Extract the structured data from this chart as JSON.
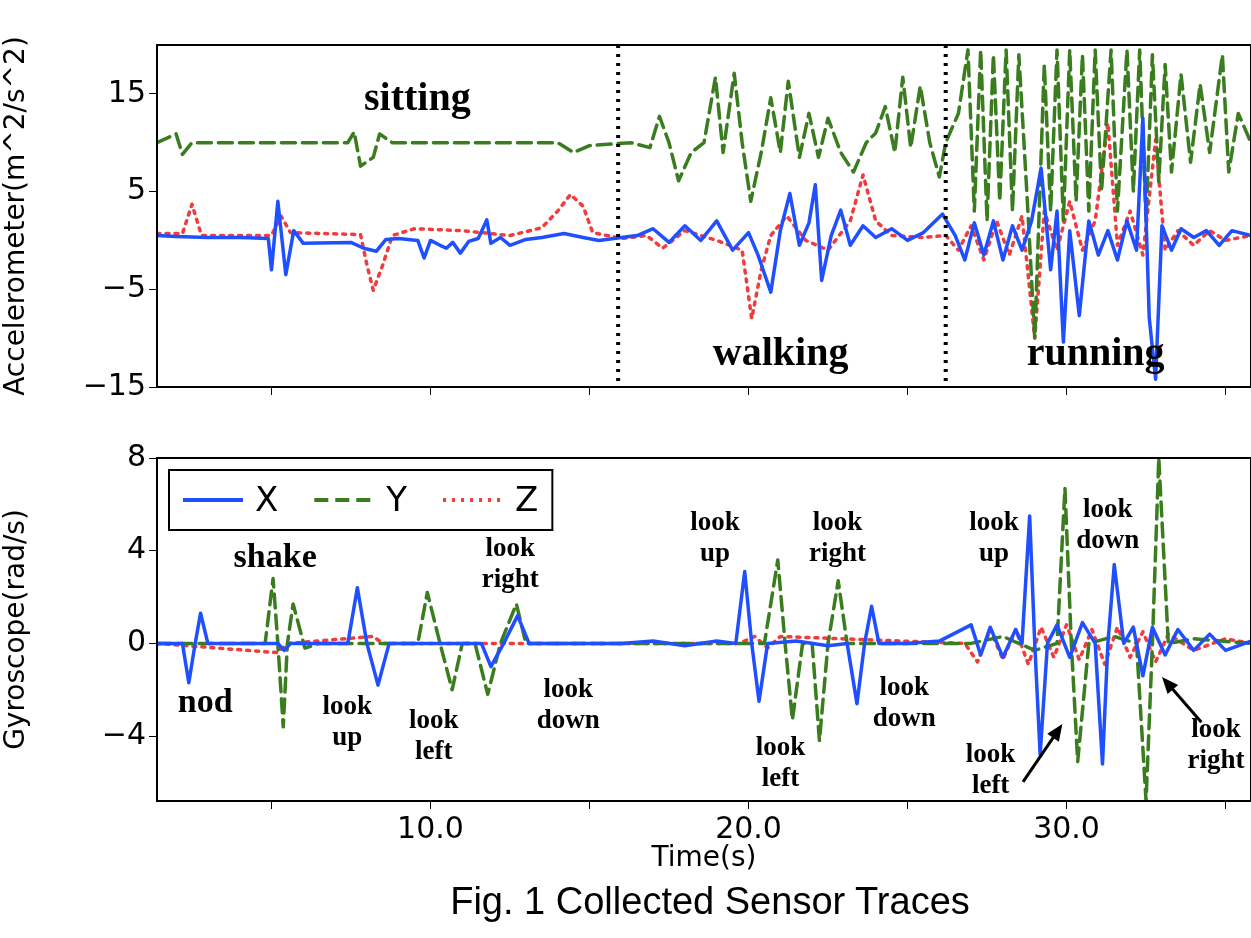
{
  "chart_data": [
    {
      "type": "line",
      "ylabel": "Accelerometer(m^2/s^2)",
      "xlim": [
        1.4,
        35.8
      ],
      "ylim": [
        -15,
        20
      ],
      "xticks": [
        {
          "value": 5,
          "label": null
        },
        {
          "value": 10,
          "label": null
        },
        {
          "value": 15,
          "label": null
        },
        {
          "value": 20,
          "label": null
        },
        {
          "value": 25,
          "label": null
        },
        {
          "value": 30,
          "label": null
        },
        {
          "value": 35,
          "label": null
        }
      ],
      "yticks": [
        {
          "value": -15,
          "label": "−15"
        },
        {
          "value": -5,
          "label": "−5"
        },
        5,
        15
      ],
      "tick_labels": "y",
      "marker": "none",
      "series": [
        {
          "color": "#1f4fff",
          "line_style": "solid",
          "x": [
            1.4,
            2.0,
            3.0,
            4.0,
            4.9,
            5.0,
            5.2,
            5.45,
            5.7,
            6.0,
            7.5,
            7.9,
            8.3,
            8.6,
            9.0,
            9.6,
            9.8,
            10.0,
            10.3,
            10.5,
            10.7,
            10.94,
            11.2,
            11.5,
            11.77,
            11.9,
            12.2,
            12.5,
            13.0,
            13.5,
            14.2,
            14.8,
            15.3,
            16.0,
            16.5,
            17.0,
            17.5,
            18.0,
            18.5,
            19.0,
            19.5,
            20.0,
            20.3,
            20.7,
            21.0,
            21.3,
            21.6,
            21.9,
            22.1,
            22.3,
            22.6,
            22.9,
            23.2,
            23.6,
            24.0,
            24.5,
            25.0,
            25.5,
            26.1,
            26.5,
            26.8,
            27.1,
            27.4,
            27.7,
            28.0,
            28.3,
            28.6,
            28.9,
            29.2,
            29.5,
            29.7,
            29.9,
            30.1,
            30.4,
            30.7,
            31.0,
            31.3,
            31.6,
            31.9,
            32.2,
            32.4,
            32.6,
            32.8,
            33.0,
            33.3,
            33.6,
            34.0,
            34.4,
            34.8,
            35.2,
            35.8
          ],
          "values": [
            0.5,
            0.4,
            0.3,
            0.3,
            0.2,
            -3,
            4,
            -3.5,
            1,
            -0.3,
            -0.2,
            -0.8,
            -1.1,
            0.1,
            0.2,
            0,
            -1.8,
            0,
            -0.5,
            -0.8,
            -0.2,
            -1.3,
            -0.1,
            0.2,
            2.1,
            -0.3,
            0.3,
            -0.5,
            0.1,
            0.3,
            0.7,
            0.3,
            0,
            0.3,
            0.5,
            1.2,
            -0.2,
            1.5,
            0,
            2,
            -1,
            0.8,
            -1.5,
            -5.3,
            1,
            4.8,
            -0.5,
            1.8,
            5.7,
            -4.1,
            0.5,
            3.1,
            -0.5,
            1.5,
            0.3,
            1.2,
            0,
            0.8,
            2.7,
            0.5,
            -2,
            1.8,
            -1.5,
            2,
            -2,
            1.5,
            -1,
            2,
            7.4,
            -3,
            3,
            -10.4,
            1,
            -7.7,
            2,
            -1.5,
            1,
            -2,
            2,
            -1,
            12.5,
            -7.9,
            -14.2,
            1.5,
            -1,
            1.2,
            0.3,
            1,
            -0.5,
            1,
            0.5
          ]
        },
        {
          "color": "#3a7d1e",
          "line_style": "dashed",
          "x": [
            1.4,
            2.0,
            2.2,
            2.5,
            7.4,
            7.6,
            7.8,
            8.2,
            8.4,
            8.8,
            14.0,
            14.5,
            15.0,
            16.3,
            16.9,
            17.2,
            17.5,
            17.8,
            18.2,
            18.6,
            18.96,
            19.2,
            19.55,
            19.8,
            20.07,
            20.4,
            20.7,
            21.0,
            21.25,
            21.6,
            21.9,
            22.2,
            22.5,
            22.9,
            23.3,
            23.7,
            24.0,
            24.3,
            24.6,
            24.85,
            25.1,
            25.4,
            25.7,
            26.0,
            26.2,
            26.6,
            26.9,
            27.1,
            27.3,
            27.5,
            27.7,
            27.9,
            28.1,
            28.3,
            28.5,
            28.75,
            29.0,
            29.3,
            29.5,
            29.7,
            29.9,
            30.1,
            30.3,
            30.5,
            30.7,
            30.9,
            31.1,
            31.4,
            31.6,
            31.9,
            32.1,
            32.3,
            32.5,
            32.7,
            32.9,
            33.1,
            33.3,
            33.6,
            33.9,
            34.2,
            34.5,
            34.9,
            35.1,
            35.4,
            35.8
          ],
          "values": [
            10,
            10.9,
            8.8,
            10,
            10,
            11.1,
            7.6,
            8.5,
            10.9,
            10,
            10,
            9.0,
            9.7,
            10,
            9.5,
            12.7,
            10,
            6.1,
            9,
            10,
            16.7,
            9,
            17.1,
            10,
            4,
            9,
            14.6,
            9,
            16.3,
            8.5,
            13,
            8.5,
            12.5,
            9,
            7,
            10,
            11,
            13.7,
            9,
            16.7,
            9.5,
            15.8,
            10,
            6.5,
            10,
            13,
            19.5,
            3,
            19.5,
            2,
            19,
            4,
            19.5,
            3,
            19,
            5,
            -10,
            18,
            3,
            19.5,
            2,
            19.5,
            4,
            19,
            3,
            19.5,
            5,
            19.5,
            3,
            19.5,
            5,
            19.5,
            2,
            19,
            6,
            18,
            7,
            17,
            8,
            16,
            9,
            19,
            7,
            13,
            10
          ]
        },
        {
          "color": "#f03c3c",
          "line_style": "dotted",
          "x": [
            1.4,
            2.2,
            2.5,
            2.8,
            5.0,
            5.3,
            5.6,
            7.8,
            8.0,
            8.2,
            8.5,
            8.8,
            9.5,
            11.0,
            12.5,
            13.5,
            14.0,
            14.4,
            14.8,
            15.1,
            16.0,
            16.8,
            17.3,
            18.0,
            19.0,
            19.8,
            20.1,
            20.4,
            20.7,
            21.2,
            21.8,
            22.5,
            23.2,
            23.6,
            24.0,
            24.5,
            25.5,
            26.2,
            26.6,
            27.0,
            27.4,
            27.8,
            28.2,
            28.6,
            29.0,
            29.3,
            29.7,
            30.1,
            30.5,
            30.9,
            31.3,
            31.6,
            32.0,
            32.4,
            32.8,
            33.1,
            33.5,
            34.0,
            34.5,
            35.0,
            35.8
          ],
          "values": [
            0.7,
            0.7,
            3.7,
            0.5,
            0.5,
            2.5,
            0.8,
            0.6,
            -2.5,
            -5.1,
            -2.5,
            0.5,
            1.2,
            1.0,
            0.5,
            1.3,
            3,
            4.7,
            3.5,
            0.8,
            0.2,
            0.5,
            -0.8,
            1,
            0,
            -1,
            -8,
            -3,
            0.5,
            2.5,
            0,
            -1,
            2,
            6.7,
            2,
            0.5,
            0.3,
            0.5,
            -1,
            1.5,
            -2,
            2,
            -1.5,
            2.5,
            -10,
            3,
            -1,
            4,
            -1,
            2,
            12,
            -0.5,
            3,
            -1.5,
            10.3,
            -1,
            1,
            -0.5,
            1,
            0,
            0.5
          ]
        }
      ],
      "ref_lines": [
        {
          "axis": "x",
          "value": 15.9,
          "color": "#000000",
          "line_style": "dotted"
        },
        {
          "axis": "x",
          "value": 26.2,
          "color": "#000000",
          "line_style": "dotted"
        }
      ],
      "annotations": [
        "sitting",
        "walking",
        "running"
      ]
    },
    {
      "type": "line",
      "xlabel": "Time(s)",
      "ylabel": "Gyroscope(rad/s)",
      "xlim": [
        1.4,
        35.8
      ],
      "ylim": [
        -6.8,
        8
      ],
      "xticks": [
        {
          "value": 5,
          "label": null
        },
        {
          "value": 10,
          "label": "10.0"
        },
        {
          "value": 15,
          "label": null
        },
        {
          "value": 20,
          "label": "20.0"
        },
        {
          "value": 25,
          "label": null
        },
        {
          "value": 30,
          "label": "30.0"
        },
        {
          "value": 35,
          "label": null
        }
      ],
      "yticks": [
        {
          "value": -4,
          "label": "−4"
        },
        0,
        4,
        8
      ],
      "legend": "top left",
      "marker": "none",
      "series": [
        {
          "name": "X",
          "color": "#1f4fff",
          "line_style": "solid",
          "x": [
            1.4,
            2.2,
            2.4,
            2.6,
            2.77,
            3.0,
            5.2,
            5.4,
            5.6,
            7.4,
            7.7,
            8.0,
            8.35,
            8.7,
            11.6,
            11.9,
            12.3,
            12.74,
            13.1,
            15,
            16,
            17,
            18,
            19,
            19.6,
            19.88,
            20.1,
            20.33,
            20.6,
            21.5,
            22.5,
            23.1,
            23.41,
            23.65,
            23.87,
            24.1,
            25,
            26,
            27.0,
            27.3,
            27.6,
            28.0,
            28.4,
            28.6,
            28.84,
            29.0,
            29.17,
            29.4,
            29.7,
            30.1,
            30.5,
            30.9,
            31.13,
            31.3,
            31.5,
            31.8,
            32.1,
            32.4,
            32.7,
            33.1,
            33.5,
            34,
            34.5,
            35,
            35.8
          ],
          "values": [
            0,
            0,
            -1.7,
            0,
            1.3,
            0,
            0,
            -0.3,
            0,
            0,
            2.4,
            0,
            -1.8,
            0,
            0,
            -1.0,
            0,
            1.2,
            0,
            0,
            0,
            0.1,
            -0.1,
            0.1,
            0,
            3.1,
            0,
            -2.5,
            0,
            0.1,
            -0.1,
            0,
            -2.6,
            0,
            1.6,
            0,
            0,
            0.1,
            0.8,
            -0.5,
            0.7,
            -0.6,
            0.6,
            0,
            5.5,
            0,
            -4.8,
            0,
            0.8,
            -0.6,
            0.9,
            0,
            -5.2,
            0,
            3.4,
            0,
            0.7,
            -1.4,
            0.7,
            -0.5,
            0.6,
            -0.3,
            0.4,
            -0.3,
            0.1
          ]
        },
        {
          "name": "Y",
          "color": "#3a7d1e",
          "line_style": "dashed",
          "x": [
            1.4,
            4.8,
            5.05,
            5.2,
            5.37,
            5.5,
            5.68,
            6.05,
            6.5,
            9.6,
            9.9,
            10.3,
            10.68,
            11.0,
            11.4,
            11.8,
            12.2,
            12.7,
            13.0,
            20.5,
            20.92,
            21.15,
            21.38,
            21.7,
            22.0,
            22.23,
            22.5,
            22.82,
            23.1,
            27,
            28,
            29,
            29.7,
            29.95,
            30.15,
            30.35,
            30.7,
            31.5,
            32.2,
            32.5,
            32.7,
            32.9,
            33.2,
            34,
            35.8
          ],
          "values": [
            0,
            0,
            2.8,
            0,
            -3.6,
            0,
            1.7,
            -0.2,
            0,
            0,
            2.2,
            0,
            -2.0,
            0,
            0,
            -2.2,
            0,
            1.7,
            0,
            0,
            3.6,
            0,
            -3.3,
            0,
            0,
            -4.2,
            0,
            2.7,
            0,
            0,
            0.3,
            -0.3,
            0,
            6.7,
            0,
            -5.1,
            0,
            0.3,
            0,
            -6.8,
            0,
            8,
            0,
            0.2,
            0
          ]
        },
        {
          "name": "Z",
          "color": "#f03c3c",
          "line_style": "dotted",
          "x": [
            1.4,
            5.2,
            5.5,
            8.2,
            8.5,
            19.7,
            20.2,
            20.6,
            21,
            26.8,
            27.2,
            27.6,
            28,
            28.4,
            28.8,
            29.2,
            29.6,
            30,
            30.4,
            30.8,
            31.2,
            31.6,
            32,
            32.4,
            32.8,
            33.2,
            34,
            35,
            35.8
          ],
          "values": [
            0,
            -0.4,
            0,
            0.3,
            0,
            0,
            0.3,
            -0.2,
            0.3,
            0,
            -0.8,
            0.6,
            -0.7,
            0.6,
            -0.9,
            0.7,
            -0.6,
            0.8,
            -0.7,
            0.6,
            -0.9,
            0.7,
            -0.6,
            0.5,
            -0.8,
            0.4,
            -0.3,
            0.2,
            0
          ]
        }
      ],
      "annotations": [
        "nod",
        "shake",
        "look up",
        "look left",
        "look right",
        "look down",
        "look up",
        "look left",
        "look right",
        "look down",
        "look up",
        "look left",
        "look down",
        "look right",
        "Fig. 1 Collected Sensor Traces"
      ]
    }
  ]
}
